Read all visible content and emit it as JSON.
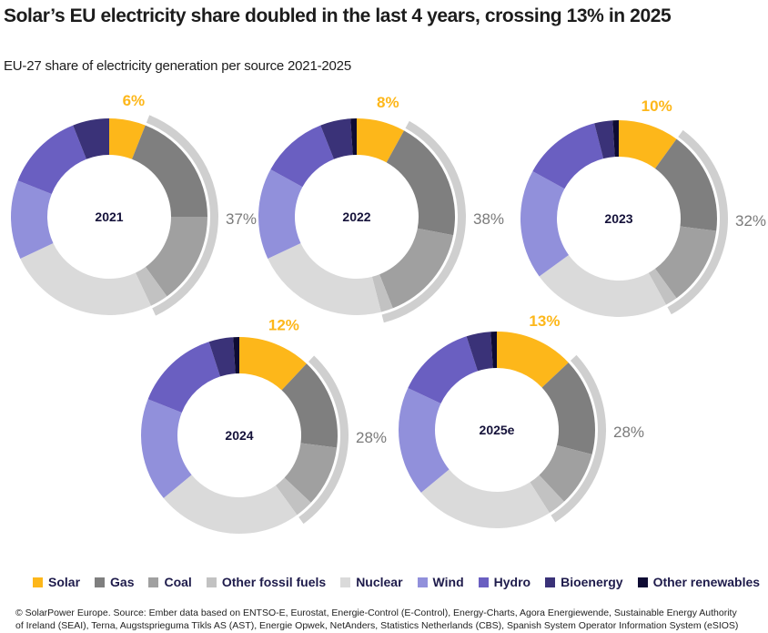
{
  "header": {
    "title": "Solar’s EU electricity share doubled in the last 4 years, crossing 13% in 2025",
    "subtitle": "EU-27 share of electricity generation per source 2021-2025"
  },
  "legend": [
    {
      "label": "Solar",
      "color": "#FDB71A"
    },
    {
      "label": "Gas",
      "color": "#7F7F7F"
    },
    {
      "label": "Coal",
      "color": "#A0A0A0"
    },
    {
      "label": "Other fossil fuels",
      "color": "#C2C2C2"
    },
    {
      "label": "Nuclear",
      "color": "#DADADA"
    },
    {
      "label": "Wind",
      "color": "#9190DB"
    },
    {
      "label": "Hydro",
      "color": "#6A5FC1"
    },
    {
      "label": "Bioenergy",
      "color": "#3A3278"
    },
    {
      "label": "Other renewables",
      "color": "#0E0B33"
    }
  ],
  "footer": {
    "line1": "© SolarPower Europe. Source: Ember data based on ENTSO-E, Eurostat, Energie-Control (E-Control), Energy-Charts, Agora Energiewende, Sustainable Energy Authority",
    "line2": "of Ireland (SEAI), Terna, Augstsprieguma Tīkls AS (AST), Energie Opwek, NetAnders, Statistics Netherlands (CBS), Spanish System Operator Information System (eSIOS)"
  },
  "chart_data": {
    "type": "pie",
    "variant": "donut",
    "title": "Solar’s EU electricity share doubled in the last 4 years, crossing 13% in 2025",
    "subtitle": "EU-27 share of electricity generation per source 2021-2025",
    "unit": "% of EU-27 electricity generation",
    "categories": [
      "Solar",
      "Gas",
      "Coal",
      "Other fossil fuels",
      "Nuclear",
      "Wind",
      "Hydro",
      "Bioenergy",
      "Other renewables"
    ],
    "colors": [
      "#FDB71A",
      "#7F7F7F",
      "#A0A0A0",
      "#C2C2C2",
      "#DADADA",
      "#9190DB",
      "#6A5FC1",
      "#3A3278",
      "#0E0B33"
    ],
    "legend_position": "bottom",
    "charts": [
      {
        "year_label": "2021",
        "values": [
          6,
          19,
          15,
          3,
          25,
          13,
          13,
          6,
          0
        ],
        "solar_label": "6%",
        "fossil_label": "37%",
        "fossil_total": 37
      },
      {
        "year_label": "2022",
        "values": [
          8,
          20,
          16,
          2,
          22,
          15,
          11,
          5,
          1
        ],
        "solar_label": "8%",
        "fossil_label": "38%",
        "fossil_total": 38
      },
      {
        "year_label": "2023",
        "values": [
          10,
          17,
          13,
          2,
          23,
          18,
          13,
          3,
          1
        ],
        "solar_label": "10%",
        "fossil_label": "32%",
        "fossil_total": 32
      },
      {
        "year_label": "2024",
        "values": [
          12,
          15,
          10,
          3,
          24,
          17,
          14,
          4,
          1
        ],
        "solar_label": "12%",
        "fossil_label": "28%",
        "fossil_total": 28
      },
      {
        "year_label": "2025e",
        "values": [
          13,
          16,
          9,
          3,
          23,
          18,
          13,
          4,
          1
        ],
        "solar_label": "13%",
        "fossil_label": "28%",
        "fossil_total": 28
      }
    ],
    "annotations": [
      "Solar share labelled above each donut in yellow",
      "Fossil share (Gas + Coal + Other fossil fuels) bracketed by outer grey arc and labelled on the right"
    ]
  }
}
